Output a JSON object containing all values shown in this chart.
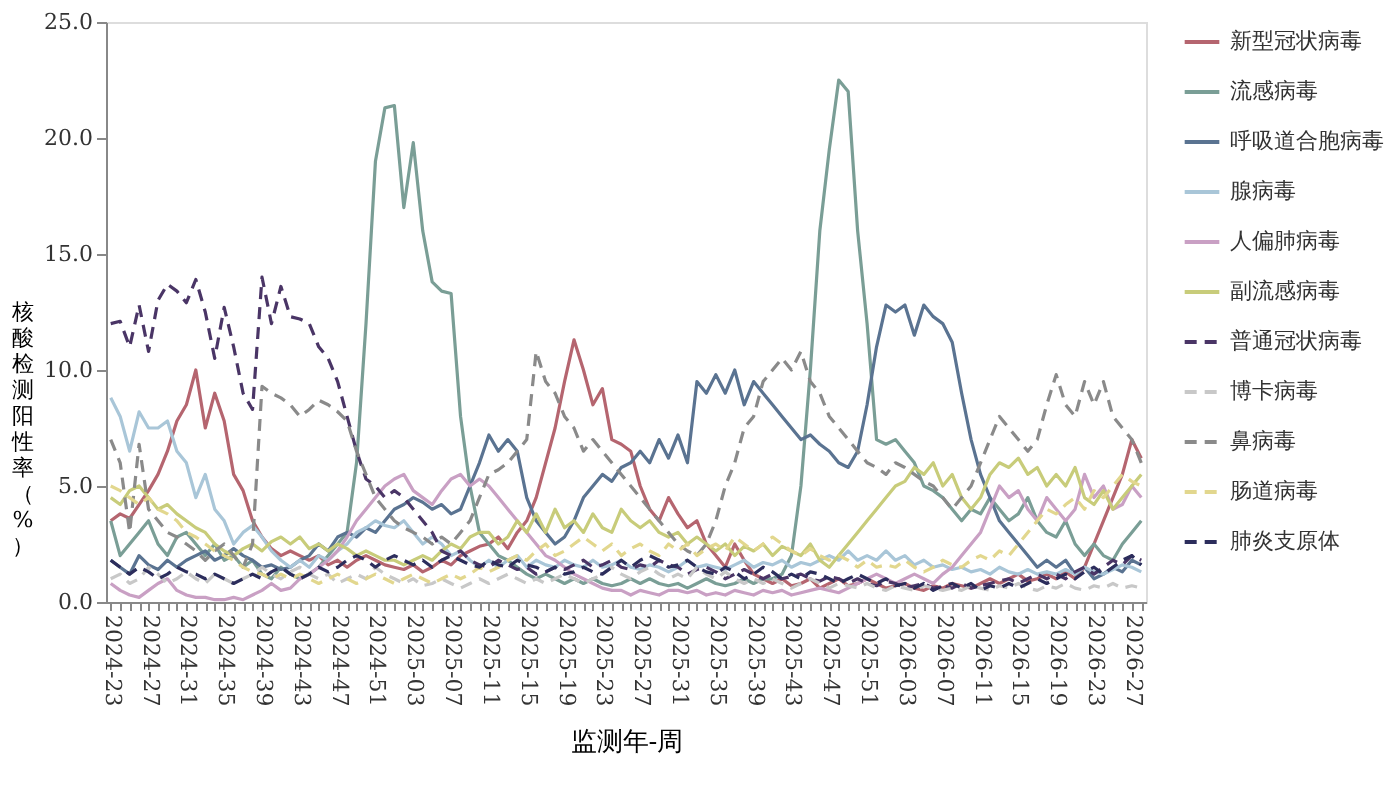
{
  "chart_data": {
    "type": "line",
    "xlabel": "监测年-周",
    "ylabel": "核酸检测阳性率（%）",
    "categories": [
      "2024-23",
      null,
      null,
      null,
      "2024-27",
      null,
      null,
      null,
      "2024-31",
      null,
      null,
      null,
      "2024-35",
      null,
      null,
      null,
      "2024-39",
      null,
      null,
      null,
      "2024-43",
      null,
      null,
      null,
      "2024-47",
      null,
      null,
      null,
      "2024-51",
      null,
      null,
      null,
      "2025-03",
      null,
      null,
      null,
      "2025-07",
      null,
      null,
      null,
      "2025-11",
      null,
      null,
      null,
      "2025-15",
      null,
      null,
      null,
      "2025-19",
      null,
      null,
      null,
      "2025-23",
      null,
      null,
      null,
      "2025-27",
      null,
      null,
      null,
      "2025-31",
      null,
      null,
      null,
      "2025-35",
      null,
      null,
      null,
      "2025-39",
      null,
      null,
      null,
      "2025-43",
      null,
      null,
      null,
      "2025-47",
      null,
      null,
      null,
      "2025-51",
      null,
      null,
      null,
      "2026-03",
      null,
      null,
      null,
      "2026-07",
      null,
      null,
      null,
      "2026-11",
      null,
      null,
      null,
      "2026-15",
      null,
      null,
      null,
      "2026-19",
      null,
      null,
      null,
      "2026-23",
      null,
      null,
      null,
      "2026-27",
      null
    ],
    "ylim": [
      0,
      25
    ],
    "yticks": [
      {
        "value": 0,
        "label": "0.0"
      },
      {
        "value": 5,
        "label": "5.0"
      },
      {
        "value": 10,
        "label": "10.0"
      },
      {
        "value": 15,
        "label": "15.0"
      },
      {
        "value": 20,
        "label": "20.0"
      },
      {
        "value": 25,
        "label": "25.0"
      }
    ],
    "grid": false,
    "legend": "right",
    "marker": "none",
    "series": [
      {
        "name": "新型冠状病毒",
        "color": "#b5656f",
        "line_style": "solid",
        "values": [
          3.5,
          3.8,
          3.6,
          4.2,
          4.8,
          5.5,
          6.5,
          7.8,
          8.5,
          10.0,
          7.5,
          9.0,
          7.8,
          5.5,
          4.8,
          3.5,
          2.8,
          2.3,
          2.0,
          2.2,
          2.0,
          1.8,
          2.0,
          1.6,
          1.8,
          1.5,
          1.8,
          2.0,
          1.8,
          1.6,
          1.5,
          1.4,
          1.6,
          1.3,
          1.5,
          1.8,
          1.6,
          2.0,
          2.2,
          2.4,
          2.5,
          2.8,
          2.3,
          3.0,
          3.5,
          4.5,
          6.0,
          7.5,
          9.5,
          11.3,
          10.0,
          8.5,
          9.2,
          7.0,
          6.8,
          6.5,
          5.0,
          4.0,
          3.5,
          4.5,
          3.8,
          3.2,
          3.5,
          2.5,
          2.0,
          1.5,
          2.5,
          1.8,
          1.2,
          1.0,
          0.8,
          1.0,
          0.7,
          0.8,
          1.0,
          0.6,
          0.8,
          1.0,
          0.7,
          0.8,
          1.0,
          0.8,
          0.6,
          0.7,
          0.8,
          0.6,
          0.5,
          0.7,
          0.6,
          0.8,
          0.7,
          0.6,
          0.8,
          1.0,
          0.8,
          1.0,
          1.2,
          0.9,
          1.0,
          1.2,
          1.0,
          1.3,
          1.0,
          1.5,
          2.5,
          3.5,
          4.5,
          5.5,
          7.0,
          6.2
        ]
      },
      {
        "name": "流感病毒",
        "color": "#7a9e96",
        "line_style": "solid",
        "values": [
          3.5,
          2.0,
          2.5,
          3.0,
          3.5,
          2.5,
          2.0,
          2.8,
          3.0,
          2.5,
          2.0,
          2.5,
          1.8,
          2.0,
          1.5,
          1.8,
          1.2,
          1.0,
          1.5,
          1.2,
          1.0,
          1.2,
          1.5,
          2.0,
          2.5,
          3.0,
          6.0,
          12.0,
          19.0,
          21.3,
          21.4,
          17.0,
          19.8,
          16.0,
          13.8,
          13.4,
          13.3,
          8.0,
          5.0,
          3.0,
          2.5,
          2.0,
          1.8,
          1.5,
          1.2,
          1.0,
          1.2,
          1.0,
          0.8,
          1.0,
          0.8,
          1.0,
          0.8,
          0.7,
          0.8,
          1.0,
          0.8,
          1.0,
          0.8,
          0.7,
          0.8,
          0.6,
          0.8,
          1.0,
          0.8,
          0.7,
          0.8,
          1.0,
          0.8,
          1.0,
          1.0,
          1.2,
          2.0,
          5.0,
          10.0,
          16.0,
          19.5,
          22.5,
          22.0,
          16.0,
          12.0,
          7.0,
          6.8,
          7.0,
          6.5,
          6.0,
          5.0,
          4.8,
          4.5,
          4.0,
          3.5,
          4.0,
          3.8,
          4.5,
          4.0,
          3.5,
          3.8,
          4.5,
          3.5,
          3.0,
          2.8,
          3.5,
          2.5,
          2.0,
          2.5,
          2.0,
          1.8,
          2.5,
          3.0,
          3.5
        ]
      },
      {
        "name": "呼吸道合胞病毒",
        "color": "#5a7391",
        "line_style": "solid",
        "values": [
          1.8,
          1.5,
          1.2,
          2.0,
          1.6,
          1.4,
          1.8,
          1.5,
          1.8,
          2.0,
          2.2,
          1.8,
          2.0,
          2.3,
          2.0,
          1.8,
          1.5,
          1.6,
          1.4,
          1.5,
          1.8,
          2.0,
          2.5,
          2.2,
          2.8,
          3.0,
          2.8,
          3.2,
          3.0,
          3.5,
          4.0,
          4.2,
          4.5,
          4.3,
          4.0,
          4.2,
          3.8,
          4.0,
          5.0,
          6.0,
          7.2,
          6.5,
          7.0,
          6.5,
          4.5,
          3.5,
          3.0,
          2.5,
          2.8,
          3.5,
          4.5,
          5.0,
          5.5,
          5.2,
          5.8,
          6.0,
          6.5,
          6.0,
          7.0,
          6.2,
          7.2,
          6.0,
          9.5,
          9.0,
          9.8,
          9.0,
          10.0,
          8.5,
          9.5,
          9.0,
          8.5,
          8.0,
          7.5,
          7.0,
          7.2,
          6.8,
          6.5,
          6.0,
          5.8,
          6.5,
          8.5,
          11.0,
          12.8,
          12.5,
          12.8,
          11.5,
          12.8,
          12.3,
          12.0,
          11.2,
          9.0,
          7.0,
          5.5,
          4.5,
          3.5,
          3.0,
          2.5,
          2.0,
          1.5,
          1.8,
          1.5,
          1.8,
          1.2,
          1.5,
          1.0,
          1.2,
          1.5,
          1.3,
          1.8,
          1.6
        ]
      },
      {
        "name": "腺病毒",
        "color": "#a9c6d8",
        "line_style": "solid",
        "values": [
          8.8,
          8.0,
          6.5,
          8.2,
          7.5,
          7.5,
          7.8,
          6.5,
          6.0,
          4.5,
          5.5,
          4.0,
          3.5,
          2.5,
          3.0,
          3.3,
          2.8,
          2.2,
          1.8,
          1.5,
          1.8,
          1.5,
          2.0,
          1.8,
          2.2,
          2.5,
          3.0,
          3.2,
          3.5,
          3.3,
          3.2,
          3.5,
          3.0,
          2.5,
          2.8,
          2.5,
          2.0,
          2.2,
          1.8,
          1.5,
          1.8,
          1.5,
          1.8,
          2.0,
          1.5,
          1.8,
          1.6,
          1.5,
          1.8,
          1.6,
          1.5,
          1.8,
          1.5,
          1.6,
          1.8,
          1.5,
          1.4,
          1.6,
          1.5,
          1.3,
          1.5,
          1.8,
          1.5,
          1.6,
          1.5,
          1.4,
          1.6,
          1.8,
          1.5,
          1.7,
          1.6,
          1.8,
          1.5,
          1.7,
          1.6,
          1.8,
          2.0,
          1.8,
          2.2,
          1.8,
          2.0,
          1.8,
          2.2,
          1.8,
          2.0,
          1.6,
          1.8,
          1.5,
          1.6,
          1.4,
          1.5,
          1.3,
          1.4,
          1.2,
          1.5,
          1.3,
          1.2,
          1.4,
          1.2,
          1.3,
          1.2,
          1.4,
          1.2,
          1.5,
          1.3,
          1.2,
          1.4,
          1.6,
          1.5,
          1.3
        ]
      },
      {
        "name": "人偏肺病毒",
        "color": "#c9a0c4",
        "line_style": "solid",
        "values": [
          0.8,
          0.5,
          0.3,
          0.2,
          0.5,
          0.8,
          1.0,
          0.5,
          0.3,
          0.2,
          0.2,
          0.1,
          0.1,
          0.2,
          0.1,
          0.3,
          0.5,
          0.8,
          0.5,
          0.6,
          1.0,
          1.2,
          1.5,
          1.8,
          2.2,
          2.8,
          3.5,
          4.0,
          4.5,
          5.0,
          5.3,
          5.5,
          4.8,
          4.5,
          4.2,
          4.8,
          5.3,
          5.5,
          5.0,
          5.3,
          5.0,
          4.5,
          4.0,
          3.5,
          3.0,
          2.5,
          2.0,
          1.8,
          1.5,
          1.2,
          1.0,
          0.8,
          0.6,
          0.5,
          0.5,
          0.3,
          0.5,
          0.4,
          0.3,
          0.5,
          0.5,
          0.4,
          0.5,
          0.3,
          0.4,
          0.3,
          0.5,
          0.4,
          0.3,
          0.5,
          0.4,
          0.5,
          0.3,
          0.4,
          0.5,
          0.6,
          0.5,
          0.4,
          0.6,
          0.8,
          1.0,
          1.2,
          1.0,
          0.8,
          1.0,
          1.2,
          1.0,
          0.8,
          1.2,
          1.5,
          2.0,
          2.5,
          3.0,
          4.0,
          5.0,
          4.5,
          4.8,
          4.0,
          3.5,
          4.5,
          4.0,
          3.5,
          4.0,
          5.5,
          4.5,
          5.0,
          4.0,
          4.2,
          5.0,
          4.5
        ]
      },
      {
        "name": "副流感病毒",
        "color": "#c8cc7a",
        "line_style": "solid",
        "values": [
          4.5,
          4.2,
          4.8,
          5.0,
          4.5,
          4.0,
          4.2,
          3.8,
          3.5,
          3.2,
          3.0,
          2.5,
          2.2,
          2.0,
          2.3,
          2.5,
          2.2,
          2.6,
          2.8,
          2.5,
          2.8,
          2.3,
          2.5,
          2.2,
          2.5,
          2.3,
          2.0,
          2.2,
          2.0,
          1.8,
          1.8,
          1.6,
          1.8,
          2.0,
          1.8,
          2.2,
          2.5,
          2.3,
          2.8,
          3.0,
          3.0,
          2.5,
          2.8,
          3.5,
          3.0,
          3.8,
          3.0,
          4.0,
          3.2,
          3.5,
          3.0,
          3.8,
          3.2,
          3.0,
          4.0,
          3.5,
          3.2,
          3.5,
          3.0,
          2.8,
          3.0,
          2.5,
          2.8,
          2.5,
          2.2,
          2.5,
          2.0,
          2.4,
          2.2,
          2.5,
          2.0,
          2.4,
          2.2,
          2.0,
          2.5,
          1.8,
          1.5,
          2.0,
          2.5,
          3.0,
          3.5,
          4.0,
          4.5,
          5.0,
          5.2,
          5.8,
          5.5,
          6.0,
          5.0,
          5.5,
          4.5,
          4.0,
          4.5,
          5.5,
          6.0,
          5.8,
          6.2,
          5.5,
          5.8,
          5.0,
          5.5,
          5.0,
          5.8,
          4.5,
          4.2,
          4.8,
          4.0,
          4.5,
          5.0,
          5.5
        ]
      },
      {
        "name": "普通冠状病毒",
        "color": "#4a3566",
        "line_style": "dashed",
        "values": [
          12.0,
          12.1,
          11.0,
          12.8,
          10.8,
          13.0,
          13.7,
          13.4,
          12.9,
          13.9,
          12.5,
          10.5,
          12.7,
          11.0,
          9.0,
          8.3,
          14.0,
          12.0,
          13.6,
          12.3,
          12.2,
          12.0,
          11.0,
          10.5,
          9.5,
          8.0,
          6.5,
          5.3,
          5.0,
          4.5,
          4.8,
          4.5,
          4.0,
          3.5,
          3.0,
          2.2,
          2.0,
          2.2,
          1.8,
          1.6,
          1.5,
          1.8,
          1.6,
          1.4,
          1.5,
          1.2,
          1.3,
          1.5,
          1.4,
          1.6,
          1.8,
          1.5,
          1.6,
          1.8,
          1.5,
          1.4,
          1.6,
          1.5,
          1.8,
          1.6,
          1.5,
          1.2,
          1.4,
          1.5,
          1.3,
          1.0,
          1.2,
          1.4,
          1.2,
          1.0,
          1.2,
          1.0,
          1.1,
          1.2,
          1.0,
          0.9,
          1.1,
          1.0,
          0.8,
          1.0,
          0.8,
          0.7,
          0.9,
          0.8,
          0.6,
          0.7,
          0.8,
          0.6,
          0.7,
          0.6,
          0.8,
          0.6,
          0.7,
          0.8,
          0.9,
          1.0,
          0.8,
          1.0,
          1.2,
          1.0,
          1.2,
          1.0,
          1.3,
          1.5,
          1.2,
          1.5,
          1.8,
          1.6,
          2.0,
          1.8
        ]
      },
      {
        "name": "博卡病毒",
        "color": "#c8c8c8",
        "line_style": "dashed",
        "values": [
          1.0,
          1.2,
          0.8,
          1.0,
          1.5,
          1.2,
          0.8,
          1.0,
          1.3,
          1.0,
          0.8,
          1.2,
          1.0,
          0.8,
          1.0,
          1.2,
          1.5,
          1.2,
          1.0,
          1.3,
          1.5,
          1.2,
          1.0,
          1.2,
          0.8,
          1.0,
          1.2,
          1.0,
          1.5,
          1.2,
          1.0,
          0.8,
          1.0,
          0.7,
          0.8,
          1.0,
          0.8,
          0.6,
          0.8,
          1.0,
          0.8,
          1.0,
          1.2,
          1.0,
          0.8,
          1.0,
          0.8,
          1.0,
          1.2,
          1.0,
          0.8,
          1.0,
          1.2,
          1.5,
          1.2,
          1.0,
          1.3,
          1.5,
          1.2,
          1.0,
          1.2,
          1.0,
          1.5,
          1.2,
          1.0,
          1.3,
          1.0,
          0.8,
          1.0,
          0.8,
          1.0,
          0.8,
          0.6,
          0.8,
          1.0,
          0.8,
          0.6,
          0.8,
          0.7,
          0.6,
          0.8,
          0.6,
          0.5,
          0.7,
          0.6,
          0.5,
          0.7,
          0.6,
          0.5,
          0.6,
          0.5,
          0.7,
          0.6,
          0.5,
          0.7,
          0.6,
          0.8,
          0.6,
          0.5,
          0.7,
          0.6,
          0.8,
          0.6,
          0.5,
          0.7,
          0.6,
          0.8,
          0.6,
          0.7,
          0.6
        ]
      },
      {
        "name": "鼻病毒",
        "color": "#8a8a8a",
        "line_style": "dashed",
        "values": [
          7.0,
          6.0,
          3.0,
          6.8,
          4.0,
          3.5,
          3.0,
          2.8,
          2.5,
          2.2,
          1.8,
          2.2,
          2.5,
          2.0,
          1.5,
          2.5,
          9.3,
          9.0,
          8.8,
          8.5,
          8.0,
          8.3,
          8.7,
          8.5,
          8.2,
          7.8,
          6.5,
          5.5,
          4.5,
          4.0,
          3.5,
          3.2,
          3.0,
          2.8,
          2.5,
          2.8,
          2.5,
          3.0,
          3.5,
          4.5,
          5.5,
          5.7,
          6.0,
          6.5,
          7.0,
          10.8,
          9.5,
          9.0,
          8.0,
          7.5,
          6.5,
          7.0,
          6.5,
          6.0,
          5.5,
          5.0,
          4.5,
          4.0,
          3.5,
          3.0,
          2.5,
          2.2,
          2.0,
          2.5,
          3.5,
          5.0,
          6.0,
          7.5,
          8.0,
          9.5,
          10.0,
          10.5,
          10.0,
          10.8,
          9.5,
          9.0,
          8.0,
          7.5,
          7.0,
          6.5,
          6.0,
          5.8,
          5.5,
          6.0,
          5.8,
          5.5,
          5.2,
          5.0,
          4.5,
          4.0,
          4.5,
          5.0,
          6.0,
          7.0,
          8.0,
          7.5,
          7.0,
          6.5,
          7.0,
          8.5,
          9.8,
          8.5,
          8.0,
          9.5,
          8.5,
          9.5,
          8.0,
          7.5,
          7.0,
          6.0
        ]
      },
      {
        "name": "肠道病毒",
        "color": "#e2d78e",
        "line_style": "dashed",
        "values": [
          5.0,
          4.8,
          4.5,
          4.2,
          4.5,
          4.0,
          3.8,
          3.5,
          3.0,
          2.8,
          2.5,
          2.2,
          2.0,
          1.8,
          1.5,
          1.3,
          1.2,
          1.0,
          1.2,
          1.0,
          1.2,
          1.0,
          0.8,
          1.0,
          1.2,
          1.0,
          0.8,
          1.0,
          1.2,
          1.0,
          0.8,
          1.0,
          1.2,
          1.0,
          0.8,
          1.0,
          1.2,
          1.0,
          1.2,
          1.5,
          1.3,
          1.5,
          1.8,
          2.0,
          1.8,
          2.2,
          2.5,
          2.0,
          2.2,
          2.5,
          2.8,
          2.5,
          2.2,
          2.5,
          2.0,
          2.3,
          2.5,
          2.2,
          2.0,
          2.5,
          2.2,
          2.5,
          2.0,
          2.3,
          2.5,
          2.2,
          2.8,
          2.5,
          2.2,
          2.5,
          2.8,
          2.5,
          2.2,
          2.0,
          2.3,
          2.0,
          1.8,
          2.0,
          1.8,
          1.5,
          1.8,
          1.5,
          1.6,
          1.5,
          1.8,
          1.5,
          1.3,
          1.5,
          1.8,
          1.6,
          1.5,
          1.8,
          2.0,
          1.8,
          2.2,
          2.0,
          2.5,
          3.0,
          3.5,
          4.0,
          3.8,
          4.2,
          4.5,
          4.0,
          4.8,
          4.5,
          5.0,
          5.5,
          5.2,
          5.0
        ]
      },
      {
        "name": "肺炎支原体",
        "color": "#2c2d5c",
        "line_style": "dashed",
        "values": [
          1.8,
          1.5,
          1.2,
          1.5,
          1.3,
          1.0,
          1.2,
          1.5,
          1.3,
          1.2,
          1.0,
          1.2,
          1.0,
          0.8,
          1.0,
          1.2,
          1.0,
          1.3,
          1.5,
          1.2,
          1.0,
          1.2,
          1.5,
          1.3,
          1.5,
          1.8,
          2.0,
          1.8,
          1.5,
          1.8,
          2.0,
          1.8,
          1.6,
          1.8,
          1.5,
          1.8,
          2.0,
          1.8,
          1.6,
          1.5,
          1.8,
          1.6,
          1.5,
          1.8,
          1.6,
          1.5,
          1.3,
          1.5,
          1.2,
          1.3,
          1.5,
          1.3,
          1.2,
          1.5,
          1.8,
          1.5,
          1.8,
          2.0,
          1.8,
          1.5,
          1.6,
          1.8,
          1.5,
          1.3,
          1.2,
          1.5,
          1.3,
          1.0,
          1.2,
          1.5,
          1.3,
          1.0,
          1.2,
          1.0,
          1.3,
          1.2,
          1.0,
          0.8,
          1.0,
          1.2,
          1.0,
          0.8,
          1.0,
          0.7,
          0.8,
          0.6,
          0.8,
          0.5,
          0.7,
          0.8,
          0.6,
          0.8,
          0.5,
          0.7,
          0.6,
          0.8,
          0.6,
          0.8,
          1.0,
          0.8,
          1.0,
          1.2,
          1.0,
          1.3,
          1.5,
          1.2,
          1.5,
          1.8,
          2.0,
          1.6
        ]
      }
    ]
  }
}
